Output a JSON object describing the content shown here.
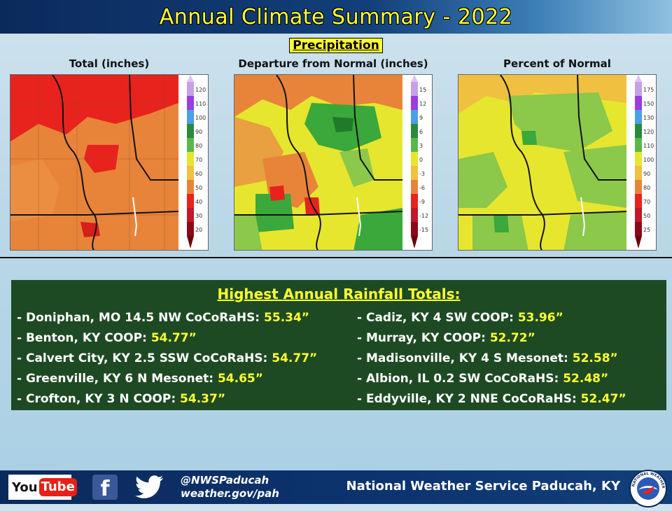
{
  "header": {
    "title": "Annual Climate Summary - 2022"
  },
  "section": {
    "label": "Precipitation"
  },
  "maps": [
    {
      "title": "Total  (inches)",
      "scale": [
        "120",
        "110",
        "100",
        "90",
        "80",
        "70",
        "60",
        "50",
        "40",
        "30",
        "20"
      ]
    },
    {
      "title": "Departure  from Normal (inches)",
      "scale": [
        "15",
        "12",
        "9",
        "6",
        "3",
        "0",
        "-3",
        "-6",
        "-9",
        "-12",
        "-15"
      ]
    },
    {
      "title": "Percent of Normal",
      "scale": [
        "175",
        "150",
        "130",
        "120",
        "110",
        "100",
        "90",
        "80",
        "70",
        "50",
        "25"
      ]
    }
  ],
  "rainfall": {
    "title": "Highest Annual Rainfall Totals:",
    "left": [
      {
        "station": "- Doniphan, MO 14.5 NW CoCoRaHS: ",
        "value": "55.34”"
      },
      {
        "station": "- Benton, KY COOP: ",
        "value": "54.77”"
      },
      {
        "station": "- Calvert City, KY 2.5 SSW CoCoRaHS: ",
        "value": "54.77”"
      },
      {
        "station": "- Greenville, KY 6 N Mesonet: ",
        "value": "54.65”"
      },
      {
        "station": "- Crofton, KY 3 N COOP: ",
        "value": "54.37”"
      }
    ],
    "right": [
      {
        "station": "- Cadiz, KY 4 SW COOP: ",
        "value": "53.96”"
      },
      {
        "station": "- Murray, KY COOP: ",
        "value": "52.72”"
      },
      {
        "station": "- Madisonville, KY 4 S Mesonet: ",
        "value": "52.58”"
      },
      {
        "station": "- Albion, IL 0.2 SW CoCoRaHS: ",
        "value": "52.48”"
      },
      {
        "station": "- Eddyville, KY 2 NNE CoCoRaHS: ",
        "value": "52.47”"
      }
    ]
  },
  "footer": {
    "youtube_you": "You",
    "youtube_tube": "Tube",
    "facebook_glyph": "f",
    "handle": "@NWSPaducah",
    "website": "weather.gov/pah",
    "office": "National Weather Service Paducah, KY",
    "logo_text": "NATIONAL WEATHER SERVICE"
  },
  "colors": {
    "title_yellow": "#ffff33",
    "header_navy": "#0b2a5c",
    "rain_box_green": "#1e4a23",
    "map_red": "#e8231e",
    "map_orange": "#e8843a",
    "map_yellow": "#e6e62e",
    "map_green": "#3aa83a",
    "map_lightgreen": "#8cc84a"
  }
}
